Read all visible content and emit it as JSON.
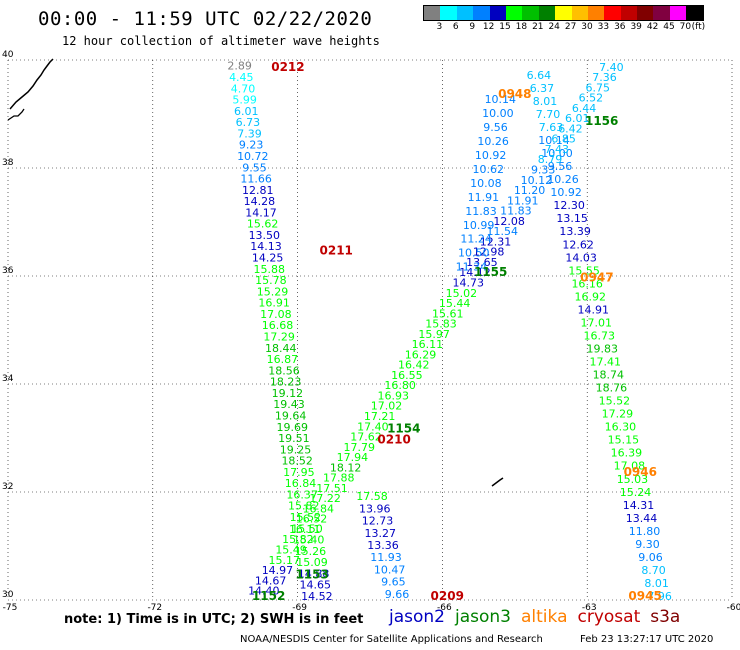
{
  "title": "00:00 - 11:59 UTC 02/22/2020",
  "subtitle": "12 hour collection of altimeter wave heights",
  "legend": {
    "unit": "(ft)",
    "colors": [
      "#808080",
      "#00ffff",
      "#00c0ff",
      "#0080ff",
      "#0000c0",
      "#00ff00",
      "#00c000",
      "#008000",
      "#ffff00",
      "#ffc000",
      "#ff8000",
      "#ff0000",
      "#c00000",
      "#800000",
      "#800040",
      "#ff00ff",
      "#000000"
    ],
    "labels": [
      "3",
      "6",
      "9",
      "12",
      "15",
      "18",
      "21",
      "24",
      "27",
      "30",
      "33",
      "36",
      "39",
      "42",
      "45",
      "70"
    ]
  },
  "axes": {
    "x_ticks": [
      "-75",
      "-72",
      "-69",
      "-66",
      "-63",
      "-60"
    ],
    "y_ticks": [
      "40",
      "38",
      "36",
      "34",
      "32",
      "30"
    ],
    "lon_range": [
      -75,
      -60
    ],
    "lat_range": [
      30,
      40
    ],
    "grid": "dotted"
  },
  "sat_colors": {
    "jason2": "#0000c0",
    "jason3": "#008000",
    "altika": "#ff8000",
    "cryosat": "#c00000",
    "s3a": "#800000"
  },
  "passes": [
    {
      "sat": "cryosat",
      "time": "0212",
      "lon": -69.2,
      "lat": 39.8
    },
    {
      "sat": "cryosat",
      "time": "0211",
      "lon": -68.2,
      "lat": 36.4
    },
    {
      "sat": "cryosat",
      "time": "0210",
      "lon": -67.0,
      "lat": 32.9
    },
    {
      "sat": "cryosat",
      "time": "0209",
      "lon": -65.9,
      "lat": 30.0
    },
    {
      "sat": "altika",
      "time": "0948",
      "lon": -64.5,
      "lat": 39.3
    },
    {
      "sat": "altika",
      "time": "0947",
      "lon": -62.8,
      "lat": 35.9
    },
    {
      "sat": "altika",
      "time": "0946",
      "lon": -61.9,
      "lat": 32.3
    },
    {
      "sat": "altika",
      "time": "0945",
      "lon": -61.8,
      "lat": 30.0
    },
    {
      "sat": "jason3",
      "time": "1156",
      "lon": -62.7,
      "lat": 38.8
    },
    {
      "sat": "jason3",
      "time": "1155",
      "lon": -65.0,
      "lat": 36.0
    },
    {
      "sat": "jason3",
      "time": "1154",
      "lon": -66.8,
      "lat": 33.1
    },
    {
      "sat": "jason3",
      "time": "1153",
      "lon": -68.7,
      "lat": 30.4
    },
    {
      "sat": "jason3",
      "time": "1152",
      "lon": -69.6,
      "lat": 30.0
    }
  ],
  "tracks": [
    {
      "sat": "cryosat",
      "start": [
        -70.2,
        39.82
      ],
      "end": [
        -68.6,
        30.0
      ],
      "values": [
        "2.89",
        "4.45",
        "4.70",
        "5.99",
        "6.01",
        "6.73",
        "7.39",
        "9.23",
        "10.72",
        "9.55",
        "11.66",
        "12.81",
        "14.28",
        "14.17",
        "15.62",
        "13.50",
        "14.13",
        "14.25",
        "15.88",
        "15.78",
        "15.29",
        "16.91",
        "17.08",
        "16.68",
        "17.29",
        "18.44",
        "16.87",
        "18.56",
        "18.23",
        "19.12",
        "19.43",
        "19.64",
        "19.69",
        "19.51",
        "19.25",
        "18.52",
        "17.95",
        "16.84",
        "16.37",
        "15.82",
        "15.52",
        "15.50",
        "15.40",
        "15.26",
        "15.09",
        "14.88",
        "14.65",
        "14.52"
      ]
    },
    {
      "sat": "altika",
      "start": [
        -64.0,
        39.65
      ],
      "end": [
        -61.5,
        30.0
      ],
      "values": [
        "6.64",
        "6.37",
        "8.01",
        "7.70",
        "7.63",
        "10.14",
        "10.00",
        "9.56",
        "10.26",
        "10.92",
        "12.30",
        "13.15",
        "13.39",
        "12.62",
        "14.03",
        "15.55",
        "16.16",
        "16.92",
        "14.91",
        "17.01",
        "16.73",
        "19.83",
        "17.41",
        "18.74",
        "18.76",
        "15.52",
        "17.29",
        "16.30",
        "15.15",
        "16.39",
        "17.08",
        "15.03",
        "15.24",
        "14.31",
        "13.44",
        "11.80",
        "9.30",
        "9.06",
        "8.70",
        "8.01",
        "7.96"
      ]
    },
    {
      "sat": "jason3",
      "start": [
        -62.5,
        39.8
      ],
      "end": [
        -69.7,
        30.1
      ],
      "values": [
        "7.40",
        "7.36",
        "6.75",
        "6.52",
        "6.44",
        "6.01",
        "6.42",
        "6.85",
        "7.43",
        "8.79",
        "9.33",
        "10.12",
        "11.20",
        "11.91",
        "11.83",
        "12.08",
        "11.54",
        "12.31",
        "12.98",
        "13.65",
        "14.12",
        "14.73",
        "15.02",
        "15.44",
        "15.61",
        "15.83",
        "15.97",
        "16.11",
        "16.29",
        "16.42",
        "16.55",
        "16.80",
        "16.93",
        "17.02",
        "17.21",
        "17.40",
        "17.62",
        "17.79",
        "17.94",
        "18.12",
        "17.88",
        "17.51",
        "17.22",
        "16.84",
        "16.52",
        "16.11",
        "15.82",
        "15.49",
        "15.17",
        "14.97",
        "14.67",
        "14.40"
      ]
    },
    {
      "sat": "jason2",
      "start": [
        -64.8,
        39.2
      ],
      "end": [
        -65.4,
        36.1
      ],
      "values": [
        "10.14",
        "10.00",
        "9.56",
        "10.26",
        "10.92",
        "10.62",
        "10.08",
        "11.91",
        "11.83",
        "10.99",
        "11.24",
        "10.50",
        "11.34"
      ]
    }
  ],
  "tail": {
    "sat": "jason3",
    "values": [
      "17.58",
      "13.96",
      "12.73",
      "13.27",
      "13.36"
    ]
  },
  "tail2": {
    "sat": "jason2",
    "values": [
      "11.93",
      "10.47",
      "9.65",
      "9.66"
    ]
  },
  "note": "note: 1) Time is in UTC; 2) SWH is in feet",
  "satellite_labels": [
    {
      "name": "jason2",
      "color": "#0000c0"
    },
    {
      "name": "jason3",
      "color": "#008000"
    },
    {
      "name": "altika",
      "color": "#ff8000"
    },
    {
      "name": "cryosat",
      "color": "#c00000"
    },
    {
      "name": "s3a",
      "color": "#800000"
    }
  ],
  "credit": "NOAA/NESDIS Center for Satellite Applications and Research",
  "timestamp": "Feb 23 13:27:17 UTC 2020"
}
